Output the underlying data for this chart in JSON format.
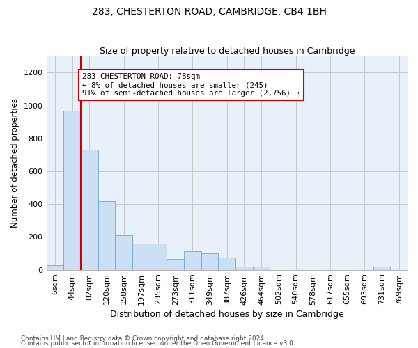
{
  "title1": "283, CHESTERTON ROAD, CAMBRIDGE, CB4 1BH",
  "title2": "Size of property relative to detached houses in Cambridge",
  "xlabel": "Distribution of detached houses by size in Cambridge",
  "ylabel": "Number of detached properties",
  "bin_labels": [
    "6sqm",
    "44sqm",
    "82sqm",
    "120sqm",
    "158sqm",
    "197sqm",
    "235sqm",
    "273sqm",
    "311sqm",
    "349sqm",
    "387sqm",
    "426sqm",
    "464sqm",
    "502sqm",
    "540sqm",
    "578sqm",
    "617sqm",
    "655sqm",
    "693sqm",
    "731sqm",
    "769sqm"
  ],
  "bar_heights": [
    30,
    970,
    730,
    420,
    210,
    160,
    160,
    65,
    115,
    100,
    75,
    20,
    20,
    0,
    0,
    0,
    0,
    0,
    0,
    20,
    0
  ],
  "bar_color": "#ccdff5",
  "bar_edge_color": "#6aaad4",
  "grid_color": "#c8c8c8",
  "bg_color": "#e8f0fa",
  "vline_x": 1.5,
  "vline_color": "#cc0000",
  "annotation_text": "283 CHESTERTON ROAD: 78sqm\n← 8% of detached houses are smaller (245)\n91% of semi-detached houses are larger (2,756) →",
  "annotation_box_color": "#ffffff",
  "annotation_box_edge": "#cc0000",
  "footer1": "Contains HM Land Registry data © Crown copyright and database right 2024.",
  "footer2": "Contains public sector information licensed under the Open Government Licence v3.0.",
  "ylim": [
    0,
    1300
  ],
  "yticks": [
    0,
    200,
    400,
    600,
    800,
    1000,
    1200
  ]
}
